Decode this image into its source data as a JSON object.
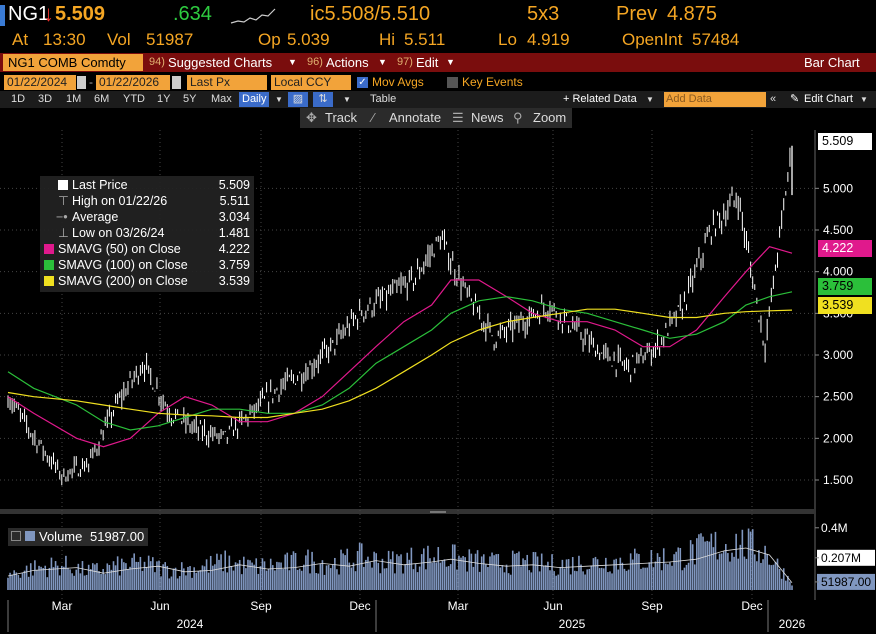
{
  "quote": {
    "ticker": "NG1",
    "last_price": "5.509",
    "change": ".634",
    "bid_ask": "ic5.508/5.510",
    "size": "5x3",
    "prev_label": "Prev",
    "prev": "4.875",
    "at_label": "At",
    "time": "13:30",
    "vol_label": "Vol",
    "volume": "51987",
    "open_label": "Op",
    "open": "5.039",
    "high_label": "Hi",
    "high": "5.511",
    "low_label": "Lo",
    "low": "4.919",
    "oi_label": "OpenInt",
    "open_interest": "57484"
  },
  "title_bar": {
    "security": "NG1 COMB Comdty",
    "suggested_num": "94)",
    "suggested": "Suggested Charts",
    "actions_num": "96)",
    "actions": "Actions",
    "edit_num": "97)",
    "edit": "Edit",
    "chart_type": "Bar Chart"
  },
  "options_bar": {
    "start_date": "01/22/2024",
    "end_date": "01/22/2026",
    "field": "Last Px",
    "currency": "Local CCY",
    "mov_avgs": "Mov Avgs",
    "key_events": "Key Events"
  },
  "period_bar": {
    "periods": [
      "1D",
      "3D",
      "1M",
      "6M",
      "YTD",
      "1Y",
      "5Y",
      "Max"
    ],
    "frequency": "Daily",
    "table": "Table",
    "related_data": "+ Related Data",
    "add_data_placeholder": "Add Data",
    "edit_chart": "Edit Chart"
  },
  "tools": {
    "track": "Track",
    "annotate": "Annotate",
    "news": "News",
    "zoom": "Zoom"
  },
  "legend": {
    "last_price_label": "Last Price",
    "last_price": "5.509",
    "high_label": "High on 01/22/26",
    "high": "5.511",
    "average_label": "Average",
    "average": "3.034",
    "low_label": "Low on 03/26/24",
    "low": "1.481",
    "sma50_label": "SMAVG (50)  on Close",
    "sma50": "4.222",
    "sma100_label": "SMAVG (100)  on Close",
    "sma100": "3.759",
    "sma200_label": "SMAVG (200)  on Close",
    "sma200": "3.539"
  },
  "volume_legend": {
    "label": "Volume",
    "value": "51987.00"
  },
  "colors": {
    "orange": "#f5a623",
    "red_arrow": "#e8312b",
    "green_change": "#2ecc40",
    "title_bar": "#7a0d0d",
    "price_bars": "#ffffff",
    "sma50": "#e0198c",
    "sma100": "#2bbf3a",
    "sma200": "#f0e020",
    "volume": "#8097c0"
  },
  "chart_data": {
    "type": "line",
    "title": "",
    "xlabel": "",
    "ylabel": "",
    "ylim": [
      1.2,
      5.7
    ],
    "yticks": [
      "5.000",
      "4.500",
      "4.000",
      "3.500",
      "3.000",
      "2.500",
      "2.000",
      "1.500"
    ],
    "x_tick_labels": [
      "Mar",
      "Jun",
      "Sep",
      "Dec",
      "Mar",
      "Jun",
      "Sep",
      "Dec"
    ],
    "year_labels": [
      "2024",
      "2025",
      "2026"
    ],
    "x": [
      "2024-01-22",
      "2024-02-15",
      "2024-03-26",
      "2024-04-20",
      "2024-05-15",
      "2024-06-10",
      "2024-07-05",
      "2024-07-30",
      "2024-08-25",
      "2024-09-20",
      "2024-10-15",
      "2024-11-10",
      "2024-12-05",
      "2024-12-30",
      "2025-01-25",
      "2025-02-20",
      "2025-03-10",
      "2025-04-05",
      "2025-05-01",
      "2025-05-25",
      "2025-06-20",
      "2025-07-15",
      "2025-08-10",
      "2025-09-05",
      "2025-09-30",
      "2025-10-25",
      "2025-11-20",
      "2025-12-10",
      "2026-01-01",
      "2026-01-22"
    ],
    "series": [
      {
        "name": "Last Price",
        "values": [
          2.5,
          2.0,
          1.55,
          1.7,
          2.4,
          2.9,
          2.3,
          2.1,
          2.0,
          2.3,
          2.6,
          2.8,
          3.1,
          3.5,
          3.7,
          3.9,
          4.4,
          3.7,
          3.2,
          3.4,
          3.6,
          3.3,
          3.0,
          2.85,
          3.1,
          3.6,
          4.5,
          4.9,
          3.1,
          5.509
        ]
      },
      {
        "name": "SMAVG (50)  on Close",
        "values": [
          2.5,
          2.3,
          2.0,
          1.9,
          2.0,
          2.3,
          2.5,
          2.4,
          2.2,
          2.2,
          2.3,
          2.5,
          2.8,
          3.1,
          3.4,
          3.6,
          3.9,
          3.9,
          3.7,
          3.5,
          3.4,
          3.4,
          3.3,
          3.1,
          3.1,
          3.3,
          3.7,
          4.0,
          4.3,
          4.222
        ]
      },
      {
        "name": "SMAVG (100)  on Close",
        "values": [
          2.8,
          2.6,
          2.4,
          2.2,
          2.1,
          2.15,
          2.25,
          2.35,
          2.35,
          2.3,
          2.3,
          2.4,
          2.6,
          2.9,
          3.1,
          3.3,
          3.5,
          3.65,
          3.7,
          3.65,
          3.55,
          3.5,
          3.4,
          3.3,
          3.2,
          3.25,
          3.4,
          3.6,
          3.7,
          3.759
        ]
      },
      {
        "name": "SMAVG (200)  on Close",
        "values": [
          2.55,
          2.5,
          2.45,
          2.4,
          2.35,
          2.3,
          2.28,
          2.27,
          2.25,
          2.25,
          2.3,
          2.35,
          2.45,
          2.6,
          2.8,
          3.0,
          3.15,
          3.3,
          3.4,
          3.45,
          3.5,
          3.55,
          3.55,
          3.5,
          3.45,
          3.45,
          3.5,
          3.52,
          3.53,
          3.539
        ]
      }
    ],
    "price_tags": [
      "5.509",
      "4.222",
      "3.759",
      "3.539"
    ],
    "volume_ylim": [
      0,
      0.45
    ],
    "volume_tick_labels": [
      "0.4M",
      "0.207M",
      "51987.00"
    ],
    "volume_values": [
      0.1,
      0.14,
      0.16,
      0.12,
      0.15,
      0.17,
      0.13,
      0.14,
      0.18,
      0.15,
      0.16,
      0.19,
      0.17,
      0.21,
      0.18,
      0.2,
      0.22,
      0.19,
      0.17,
      0.18,
      0.16,
      0.17,
      0.18,
      0.19,
      0.2,
      0.22,
      0.28,
      0.3,
      0.25,
      0.052
    ],
    "legend_placement": "top-left",
    "grid": true
  }
}
